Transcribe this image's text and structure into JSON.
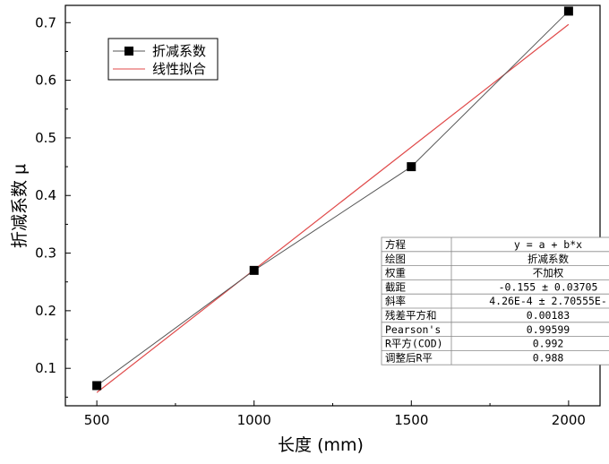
{
  "chart_data": {
    "type": "line",
    "xlabel": "长度 (mm)",
    "ylabel": "折减系数 μ",
    "xlim": [
      400,
      2100
    ],
    "ylim": [
      0.035,
      0.73
    ],
    "x_ticks": [
      500,
      1000,
      1500,
      2000
    ],
    "y_ticks": [
      0.1,
      0.2,
      0.3,
      0.4,
      0.5,
      0.6,
      0.7
    ],
    "grid": false,
    "legend_position": "top-left",
    "series": [
      {
        "name": "折减系数",
        "style": "line-with-square-markers",
        "color": "#000000",
        "line_color": "#555555",
        "x": [
          500,
          1000,
          1500,
          2000
        ],
        "y": [
          0.07,
          0.27,
          0.45,
          0.72
        ]
      },
      {
        "name": "线性拟合",
        "style": "line",
        "color": "#e04a4a",
        "x": [
          500,
          2000
        ],
        "y": [
          0.058,
          0.697
        ]
      }
    ],
    "stats_table": [
      [
        "方程",
        "y = a + b*x"
      ],
      [
        "绘图",
        "折减系数"
      ],
      [
        "权重",
        "不加权"
      ],
      [
        "截距",
        "-0.155 ± 0.03705"
      ],
      [
        "斜率",
        "4.26E-4 ± 2.70555E-"
      ],
      [
        "残差平方和",
        "0.00183"
      ],
      [
        "Pearson's",
        "0.99599"
      ],
      [
        "R平方(COD)",
        "0.992"
      ],
      [
        "调整后R平",
        "0.988"
      ]
    ]
  }
}
